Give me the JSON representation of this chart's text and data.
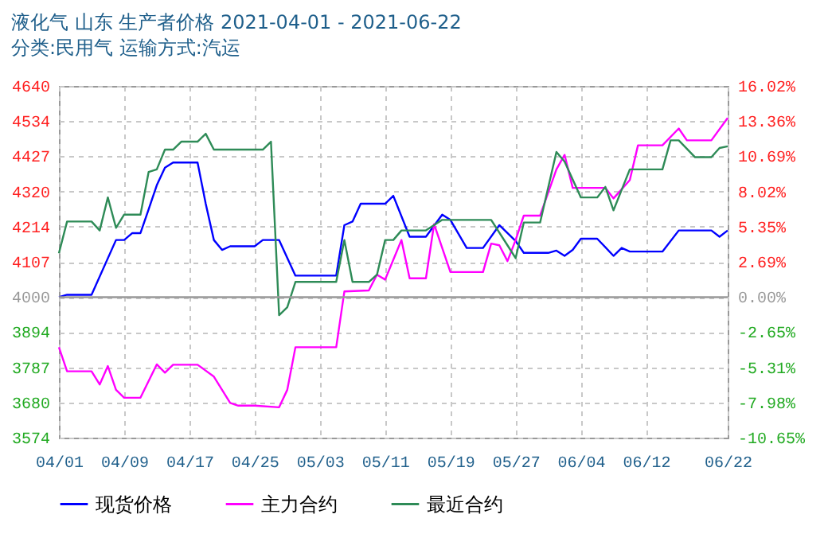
{
  "chart_data": {
    "type": "line",
    "title": "液化气 山东 生产者价格 2021-04-01 - 2021-06-22",
    "subtitle": "分类:民用气 运输方式:汽运",
    "xlim": [
      "2021-04-01",
      "2021-06-22"
    ],
    "xticks": [
      {
        "value": "2021-04-01",
        "label": "04/01"
      },
      {
        "value": "2021-04-09",
        "label": "04/09"
      },
      {
        "value": "2021-04-17",
        "label": "04/17"
      },
      {
        "value": "2021-04-25",
        "label": "04/25"
      },
      {
        "value": "2021-05-03",
        "label": "05/03"
      },
      {
        "value": "2021-05-11",
        "label": "05/11"
      },
      {
        "value": "2021-05-19",
        "label": "05/19"
      },
      {
        "value": "2021-05-27",
        "label": "05/27"
      },
      {
        "value": "2021-06-04",
        "label": "06/04"
      },
      {
        "value": "2021-06-12",
        "label": "06/12"
      },
      {
        "value": "2021-06-22",
        "label": "06/22"
      }
    ],
    "ylim": [
      3574,
      4640
    ],
    "yticks": [
      3574,
      3680,
      3787,
      3894,
      4000,
      4107,
      4214,
      4320,
      4427,
      4534,
      4640
    ],
    "y2lim": [
      -10.65,
      16.02
    ],
    "y2ticks": [
      {
        "value": -10.65,
        "label": "-10.65%"
      },
      {
        "value": -7.98,
        "label": "-7.98%"
      },
      {
        "value": -5.31,
        "label": "-5.31%"
      },
      {
        "value": -2.65,
        "label": "-2.65%"
      },
      {
        "value": 0,
        "label": "0.00%"
      },
      {
        "value": 2.69,
        "label": "2.69%"
      },
      {
        "value": 5.35,
        "label": "5.35%"
      },
      {
        "value": 8.02,
        "label": "8.02%"
      },
      {
        "value": 10.69,
        "label": "10.69%"
      },
      {
        "value": 13.36,
        "label": "13.36%"
      },
      {
        "value": 16.02,
        "label": "16.02%"
      }
    ],
    "grid": true,
    "legend": "bottom",
    "ref_lines": [
      {
        "axis": "y2",
        "value": 0,
        "color": "#999999"
      }
    ],
    "series": [
      {
        "name": "现货价格",
        "color": "#0000ff",
        "x": [
          "2021-04-01",
          "2021-04-02",
          "2021-04-05",
          "2021-04-08",
          "2021-04-09",
          "2021-04-10",
          "2021-04-11",
          "2021-04-12",
          "2021-04-13",
          "2021-04-14",
          "2021-04-15",
          "2021-04-18",
          "2021-04-19",
          "2021-04-20",
          "2021-04-21",
          "2021-04-22",
          "2021-04-25",
          "2021-04-26",
          "2021-04-28",
          "2021-04-30",
          "2021-05-05",
          "2021-05-06",
          "2021-05-07",
          "2021-05-08",
          "2021-05-11",
          "2021-05-12",
          "2021-05-14",
          "2021-05-16",
          "2021-05-18",
          "2021-05-19",
          "2021-05-21",
          "2021-05-23",
          "2021-05-25",
          "2021-05-27",
          "2021-05-28",
          "2021-05-31",
          "2021-06-01",
          "2021-06-02",
          "2021-06-03",
          "2021-06-04",
          "2021-06-06",
          "2021-06-08",
          "2021-06-09",
          "2021-06-10",
          "2021-06-14",
          "2021-06-16",
          "2021-06-20",
          "2021-06-21",
          "2021-06-22"
        ],
        "values": [
          4000,
          4007,
          4007,
          4173,
          4173,
          4194,
          4194,
          4266,
          4339,
          4392,
          4408,
          4408,
          4283,
          4173,
          4143,
          4154,
          4154,
          4173,
          4173,
          4065,
          4065,
          4218,
          4229,
          4283,
          4283,
          4307,
          4183,
          4183,
          4250,
          4234,
          4149,
          4149,
          4218,
          4170,
          4134,
          4134,
          4141,
          4125,
          4143,
          4177,
          4177,
          4125,
          4149,
          4138,
          4138,
          4202,
          4202,
          4183,
          4202
        ]
      },
      {
        "name": "主力合约",
        "color": "#ff00ff",
        "x": [
          "2021-04-01",
          "2021-04-02",
          "2021-04-05",
          "2021-04-06",
          "2021-04-07",
          "2021-04-08",
          "2021-04-09",
          "2021-04-11",
          "2021-04-13",
          "2021-04-14",
          "2021-04-15",
          "2021-04-18",
          "2021-04-20",
          "2021-04-22",
          "2021-04-23",
          "2021-04-25",
          "2021-04-28",
          "2021-04-29",
          "2021-04-30",
          "2021-05-05",
          "2021-05-06",
          "2021-05-09",
          "2021-05-10",
          "2021-05-11",
          "2021-05-12",
          "2021-05-13",
          "2021-05-14",
          "2021-05-16",
          "2021-05-17",
          "2021-05-19",
          "2021-05-23",
          "2021-05-24",
          "2021-05-25",
          "2021-05-26",
          "2021-05-27",
          "2021-05-28",
          "2021-05-30",
          "2021-06-01",
          "2021-06-02",
          "2021-06-03",
          "2021-06-07",
          "2021-06-08",
          "2021-06-10",
          "2021-06-11",
          "2021-06-14",
          "2021-06-16",
          "2021-06-17",
          "2021-06-20",
          "2021-06-22"
        ],
        "values": [
          3848,
          3775,
          3775,
          3735,
          3791,
          3719,
          3695,
          3695,
          3796,
          3771,
          3795,
          3795,
          3759,
          3679,
          3671,
          3671,
          3666,
          3719,
          3848,
          3848,
          4017,
          4020,
          4068,
          4053,
          4113,
          4173,
          4057,
          4057,
          4221,
          4076,
          4076,
          4162,
          4157,
          4109,
          4173,
          4247,
          4247,
          4387,
          4431,
          4331,
          4331,
          4299,
          4355,
          4460,
          4460,
          4511,
          4475,
          4475,
          4543
        ]
      },
      {
        "name": "最近合约",
        "color": "#2e8b57",
        "x": [
          "2021-04-01",
          "2021-04-02",
          "2021-04-05",
          "2021-04-06",
          "2021-04-07",
          "2021-04-08",
          "2021-04-09",
          "2021-04-11",
          "2021-04-12",
          "2021-04-13",
          "2021-04-14",
          "2021-04-15",
          "2021-04-16",
          "2021-04-18",
          "2021-04-19",
          "2021-04-20",
          "2021-04-26",
          "2021-04-27",
          "2021-04-28",
          "2021-04-29",
          "2021-04-30",
          "2021-05-05",
          "2021-05-06",
          "2021-05-07",
          "2021-05-09",
          "2021-05-10",
          "2021-05-11",
          "2021-05-12",
          "2021-05-13",
          "2021-05-16",
          "2021-05-18",
          "2021-05-24",
          "2021-05-26",
          "2021-05-27",
          "2021-05-28",
          "2021-05-30",
          "2021-06-01",
          "2021-06-02",
          "2021-06-04",
          "2021-06-06",
          "2021-06-07",
          "2021-06-08",
          "2021-06-10",
          "2021-06-14",
          "2021-06-15",
          "2021-06-16",
          "2021-06-18",
          "2021-06-20",
          "2021-06-21",
          "2021-06-22"
        ],
        "values": [
          4133,
          4229,
          4229,
          4202,
          4302,
          4210,
          4250,
          4250,
          4379,
          4387,
          4447,
          4447,
          4471,
          4471,
          4495,
          4447,
          4447,
          4471,
          3945,
          3969,
          4046,
          4046,
          4173,
          4046,
          4046,
          4068,
          4173,
          4173,
          4202,
          4202,
          4234,
          4234,
          4157,
          4118,
          4226,
          4226,
          4440,
          4411,
          4302,
          4302,
          4334,
          4263,
          4387,
          4387,
          4475,
          4475,
          4424,
          4424,
          4452,
          4457
        ]
      }
    ]
  }
}
